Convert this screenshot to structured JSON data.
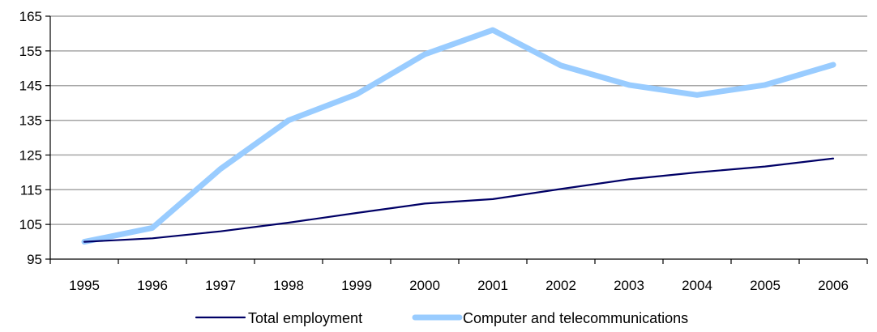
{
  "chart_data": {
    "type": "line",
    "title": "",
    "xlabel": "",
    "ylabel": "",
    "categories": [
      "1995",
      "1996",
      "1997",
      "1998",
      "1999",
      "2000",
      "2001",
      "2002",
      "2003",
      "2004",
      "2005",
      "2006"
    ],
    "y_ticks": [
      "95",
      "105",
      "115",
      "125",
      "135",
      "145",
      "155",
      "165"
    ],
    "ylim": [
      95,
      165
    ],
    "grid": true,
    "legend_position": "bottom",
    "series": [
      {
        "name": "Total employment",
        "values": [
          100,
          101,
          103,
          105.5,
          108.3,
          111,
          112.3,
          115.2,
          118,
          120,
          121.7,
          124
        ],
        "color": "#000066"
      },
      {
        "name": "Computer and telecommunications",
        "values": [
          100,
          104,
          121,
          135,
          142.5,
          154,
          161,
          150.8,
          145.2,
          142.3,
          145.2,
          151
        ],
        "color": "#99ccff"
      }
    ]
  }
}
